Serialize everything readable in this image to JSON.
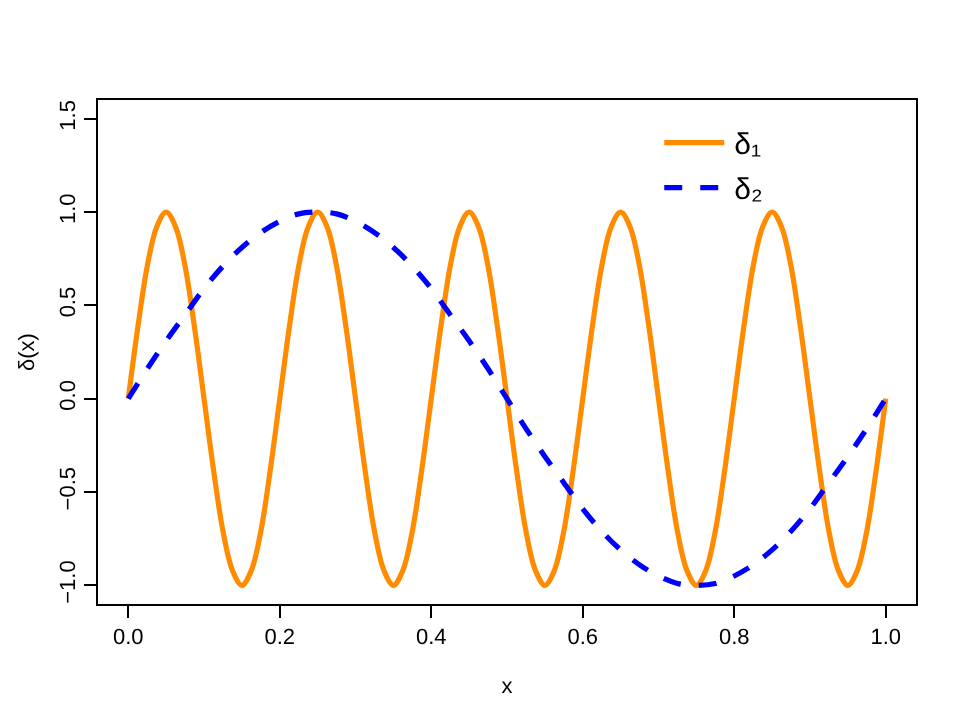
{
  "chart_data": {
    "type": "line",
    "xlabel": "x",
    "ylabel": "δ(x)",
    "xlim": [
      -0.04,
      1.04
    ],
    "ylim": [
      -1.1,
      1.6
    ],
    "xticks": [
      {
        "value": 0,
        "label": "0.0"
      },
      {
        "value": 0.2,
        "label": "0.2"
      },
      {
        "value": 0.4,
        "label": "0.4"
      },
      {
        "value": 0.6,
        "label": "0.6"
      },
      {
        "value": 0.8,
        "label": "0.8"
      },
      {
        "value": 1,
        "label": "1.0"
      }
    ],
    "yticks": [
      {
        "value": -1,
        "label": "−1.0"
      },
      {
        "value": -0.5,
        "label": "−0.5"
      },
      {
        "value": 0,
        "label": "0.0"
      },
      {
        "value": 0.5,
        "label": "0.5"
      },
      {
        "value": 1,
        "label": "1.0"
      },
      {
        "value": 1.5,
        "label": "1.5"
      }
    ],
    "grid": false,
    "legend": "top right",
    "marker": "none",
    "series": [
      {
        "name": "δ₁",
        "color": "#ff8c00",
        "line_style": "solid",
        "x": [
          0,
          0.0125,
          0.025,
          0.0375,
          0.05,
          0.0625,
          0.075,
          0.0875,
          0.1,
          0.1125,
          0.125,
          0.1375,
          0.15,
          0.1625,
          0.175,
          0.1875,
          0.2,
          0.2125,
          0.225,
          0.2375,
          0.25,
          0.2625,
          0.275,
          0.2875,
          0.3,
          0.3125,
          0.325,
          0.3375,
          0.35,
          0.3625,
          0.375,
          0.3875,
          0.4,
          0.4125,
          0.425,
          0.4375,
          0.45,
          0.4625,
          0.475,
          0.4875,
          0.5,
          0.5125,
          0.525,
          0.5375,
          0.55,
          0.5625,
          0.575,
          0.5875,
          0.6,
          0.6125,
          0.625,
          0.6375,
          0.65,
          0.6625,
          0.675,
          0.6875,
          0.7,
          0.7125,
          0.725,
          0.7375,
          0.75,
          0.7625,
          0.775,
          0.7875,
          0.8,
          0.8125,
          0.825,
          0.8375,
          0.85,
          0.8625,
          0.875,
          0.8875,
          0.9,
          0.9125,
          0.925,
          0.9375,
          0.95,
          0.9625,
          0.975,
          0.9875,
          1
        ],
        "values": [
          0,
          0.38,
          0.71,
          0.92,
          1,
          0.92,
          0.71,
          0.38,
          0,
          -0.38,
          -0.71,
          -0.92,
          -1,
          -0.92,
          -0.71,
          -0.38,
          0,
          0.38,
          0.71,
          0.92,
          1,
          0.92,
          0.71,
          0.38,
          0,
          -0.38,
          -0.71,
          -0.92,
          -1,
          -0.92,
          -0.71,
          -0.38,
          0,
          0.38,
          0.71,
          0.92,
          1,
          0.92,
          0.71,
          0.38,
          0,
          -0.38,
          -0.71,
          -0.92,
          -1,
          -0.92,
          -0.71,
          -0.38,
          0,
          0.38,
          0.71,
          0.92,
          1,
          0.92,
          0.71,
          0.38,
          0,
          -0.38,
          -0.71,
          -0.92,
          -1,
          -0.92,
          -0.71,
          -0.38,
          0,
          0.38,
          0.71,
          0.92,
          1,
          0.92,
          0.71,
          0.38,
          0,
          -0.38,
          -0.71,
          -0.92,
          -1,
          -0.92,
          -0.71,
          -0.38,
          0
        ]
      },
      {
        "name": "δ₂",
        "color": "#0000ff",
        "line_style": "dashed",
        "x": [
          0,
          0.025,
          0.05,
          0.075,
          0.1,
          0.125,
          0.15,
          0.175,
          0.2,
          0.225,
          0.25,
          0.275,
          0.3,
          0.325,
          0.35,
          0.375,
          0.4,
          0.425,
          0.45,
          0.475,
          0.5,
          0.525,
          0.55,
          0.575,
          0.6,
          0.625,
          0.65,
          0.675,
          0.7,
          0.725,
          0.75,
          0.775,
          0.8,
          0.825,
          0.85,
          0.875,
          0.9,
          0.925,
          0.95,
          0.975,
          1
        ],
        "values": [
          0,
          0.16,
          0.31,
          0.45,
          0.59,
          0.71,
          0.81,
          0.89,
          0.95,
          0.99,
          1,
          0.99,
          0.95,
          0.89,
          0.81,
          0.71,
          0.59,
          0.45,
          0.31,
          0.16,
          0,
          -0.16,
          -0.31,
          -0.45,
          -0.59,
          -0.71,
          -0.81,
          -0.89,
          -0.95,
          -0.99,
          -1,
          -0.99,
          -0.95,
          -0.89,
          -0.81,
          -0.71,
          -0.59,
          -0.45,
          -0.31,
          -0.16,
          0
        ]
      }
    ]
  }
}
